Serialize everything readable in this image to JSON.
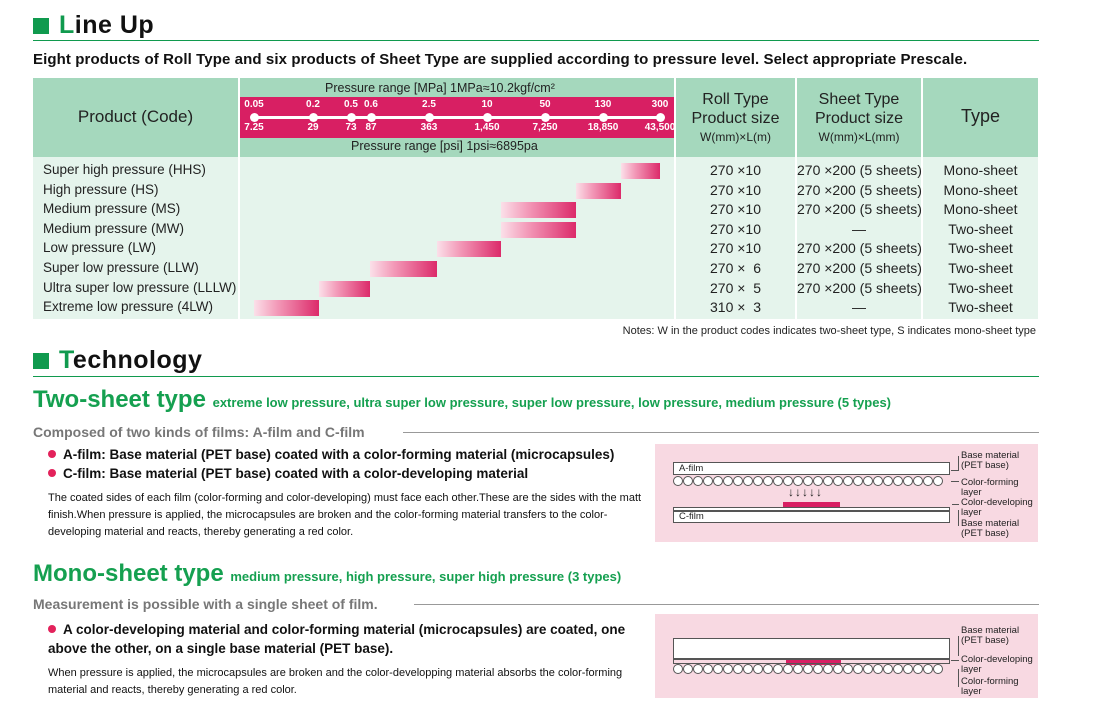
{
  "lineup": {
    "title_first": "L",
    "title_rest": "ine Up",
    "lead": "Eight products of Roll Type and six products of Sheet Type are supplied according to pressure level. Select appropriate Prescale."
  },
  "table": {
    "headers": {
      "product": "Product (Code)",
      "pressure_mpa": "Pressure range [MPa]  1MPa≈10.2kgf/cm²",
      "pressure_psi": "Pressure range [psi]  1psi≈6895pa",
      "roll_line1": "Roll Type",
      "roll_line2": "Product size",
      "roll_unit": "W(mm)×L(m)",
      "sheet_line1": "Sheet Type",
      "sheet_line2": "Product size",
      "sheet_unit": "W(mm)×L(mm)",
      "type": "Type"
    },
    "scale_mpa": [
      "0.05",
      "0.2",
      "0.5",
      "0.6",
      "2.5",
      "10",
      "50",
      "130",
      "300"
    ],
    "scale_psi": [
      "7.25",
      "29",
      "73",
      "87",
      "363",
      "1,450",
      "7,250",
      "18,850",
      "43,500"
    ],
    "rows": [
      {
        "name": "Super high pressure (HHS)",
        "roll": "270 ×10",
        "sheet": "270 ×200 (5 sheets)",
        "type": "Mono-sheet"
      },
      {
        "name": "High pressure (HS)",
        "roll": "270 ×10",
        "sheet": "270 ×200 (5 sheets)",
        "type": "Mono-sheet"
      },
      {
        "name": "Medium pressure (MS)",
        "roll": "270 ×10",
        "sheet": "270 ×200 (5 sheets)",
        "type": "Mono-sheet"
      },
      {
        "name": "Medium pressure (MW)",
        "roll": "270 ×10",
        "sheet": "—",
        "type": "Two-sheet"
      },
      {
        "name": "Low pressure (LW)",
        "roll": "270 ×10",
        "sheet": "270 ×200 (5 sheets)",
        "type": "Two-sheet"
      },
      {
        "name": "Super low pressure (LLW)",
        "roll": "270 ×  6",
        "sheet": "270 ×200 (5 sheets)",
        "type": "Two-sheet"
      },
      {
        "name": "Ultra super low pressure (LLLW)",
        "roll": "270 ×  5",
        "sheet": "270 ×200 (5 sheets)",
        "type": "Two-sheet"
      },
      {
        "name": "Extreme low pressure (4LW)",
        "roll": "310 ×  3",
        "sheet": "—",
        "type": "Two-sheet"
      }
    ],
    "ranges_mpa": [
      [
        130,
        300
      ],
      [
        50,
        130
      ],
      [
        10,
        50
      ],
      [
        10,
        50
      ],
      [
        2.5,
        10
      ],
      [
        0.6,
        2.5
      ],
      [
        0.2,
        0.6
      ],
      [
        0.05,
        0.2
      ]
    ]
  },
  "notes": "Notes: W in the product codes indicates two-sheet type, S indicates mono-sheet type",
  "technology": {
    "title_first": "T",
    "title_rest": "echnology",
    "two_sheet": {
      "title": "Two-sheet type",
      "detail": "extreme low pressure, ultra super low pressure, super low pressure, low pressure, medium pressure (5 types)",
      "subhead": "Composed of two kinds of films: A-film and C-film",
      "bullet1": "A-film: Base material (PET base) coated with a color-forming material (microcapsules)",
      "bullet2": "C-film: Base material (PET base) coated with a color-developing material",
      "body": "The coated sides of each film (color-forming and color-developing) must face each other.These are the sides with the matt finish.When pressure is applied, the microcapsules are broken and the color-forming material transfers to the color-developing material and reacts, thereby generating a red color.",
      "diagram": {
        "a_film": "A-film",
        "c_film": "C-film",
        "base1": "Base material\n(PET base)",
        "forming": "Color-forming\nlayer",
        "developing": "Color-developing\nlayer",
        "base2": "Base material\n(PET base)",
        "arrows": "↓↓↓↓↓"
      }
    },
    "mono_sheet": {
      "title": "Mono-sheet type",
      "detail": "medium pressure, high pressure, super high pressure (3 types)",
      "subhead": "Measurement is possible with a single sheet of film.",
      "bullet1": "A color-developing material and color-forming material (microcapsules) are coated, one above the other, on a single base material (PET base).",
      "body": "When pressure is applied, the microcapsules are broken and the color-developping material absorbs  the color-forming material and reacts, thereby generating a red color.",
      "diagram": {
        "base": "Base material\n(PET base)",
        "developing": "Color-developing\nlayer",
        "forming": "Color-forming\nlayer"
      }
    }
  },
  "colors": {
    "accent_green": "#109a4e",
    "header_green": "#a5d8bd",
    "row_green": "#e5f4ec",
    "magenta": "#d81f63",
    "diagram_pink": "#f8d9e2"
  }
}
